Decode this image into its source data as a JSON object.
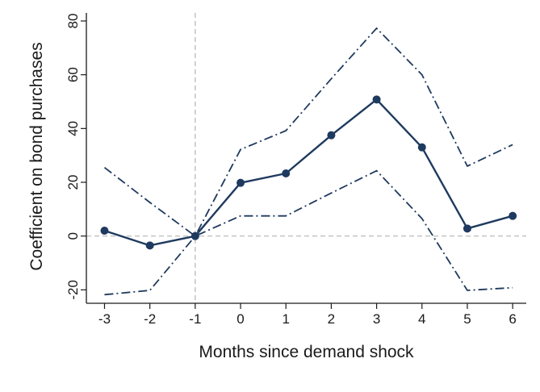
{
  "chart_data": {
    "type": "line",
    "title": "",
    "xlabel": "Months since demand shock",
    "ylabel": "Coefficient on bond purchases",
    "x": [
      -3,
      -2,
      -1,
      0,
      1,
      2,
      3,
      4,
      5,
      6
    ],
    "x_ticks": [
      "-3",
      "-2",
      "-1",
      "0",
      "1",
      "2",
      "3",
      "4",
      "5",
      "6"
    ],
    "y_ticks": [
      "-20",
      "0",
      "20",
      "40",
      "60",
      "80"
    ],
    "xlim": [
      -3.4,
      6.3
    ],
    "ylim": [
      -25,
      83
    ],
    "grid": false,
    "legend": "none",
    "reference_lines": {
      "vertical_x": -1,
      "horizontal_y": 0
    },
    "series": [
      {
        "role": "estimate",
        "style": "solid-with-markers",
        "values": [
          2,
          -3.5,
          0,
          19.8,
          23.3,
          37.5,
          50.8,
          33,
          2.8,
          7.5
        ]
      },
      {
        "role": "upper-bound",
        "style": "dash-dot",
        "values": [
          25.5,
          12.5,
          0,
          32.2,
          39.2,
          58.5,
          77.3,
          60,
          26,
          34
        ]
      },
      {
        "role": "lower-bound",
        "style": "dash-dot",
        "values": [
          -21.8,
          -20.2,
          0,
          7.5,
          7.5,
          16,
          24.3,
          6.5,
          -20.2,
          -19.2
        ]
      }
    ],
    "colors": {
      "series": "#1f3a5f",
      "axis": "#1a1a1a",
      "reference": "#b4b4b4"
    }
  }
}
